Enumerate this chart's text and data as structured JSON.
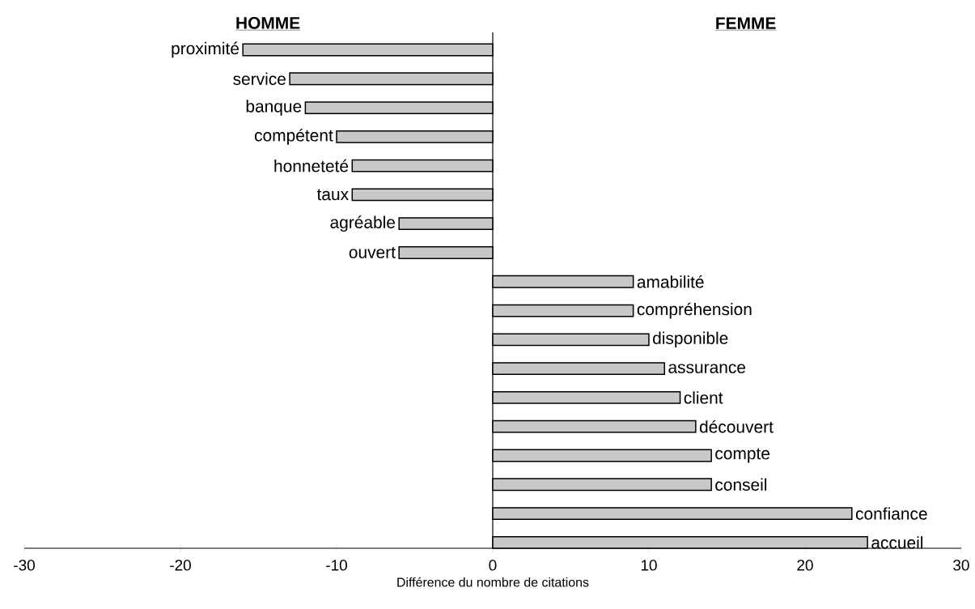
{
  "chart_data": {
    "type": "bar",
    "orientation": "horizontal",
    "xlabel": "Différence du nombre de citations",
    "annotations": [
      "HOMME",
      "FEMME"
    ],
    "categories": [
      "proximité",
      "service",
      "banque",
      "compétent",
      "honneteté",
      "taux",
      "agréable",
      "ouvert",
      "amabilité",
      "compréhension",
      "disponible",
      "assurance",
      "client",
      "découvert",
      "compte",
      "conseil",
      "confiance",
      "accueil"
    ],
    "values": [
      -16,
      -13,
      -12,
      -10,
      -9,
      -9,
      -6,
      -6,
      9,
      9,
      10,
      11,
      12,
      13,
      14,
      14,
      23,
      24
    ],
    "color": "#c8c8c8",
    "xlim": [
      -30,
      30
    ],
    "xticks": [
      -30,
      -20,
      -10,
      0,
      10,
      20,
      30
    ]
  }
}
